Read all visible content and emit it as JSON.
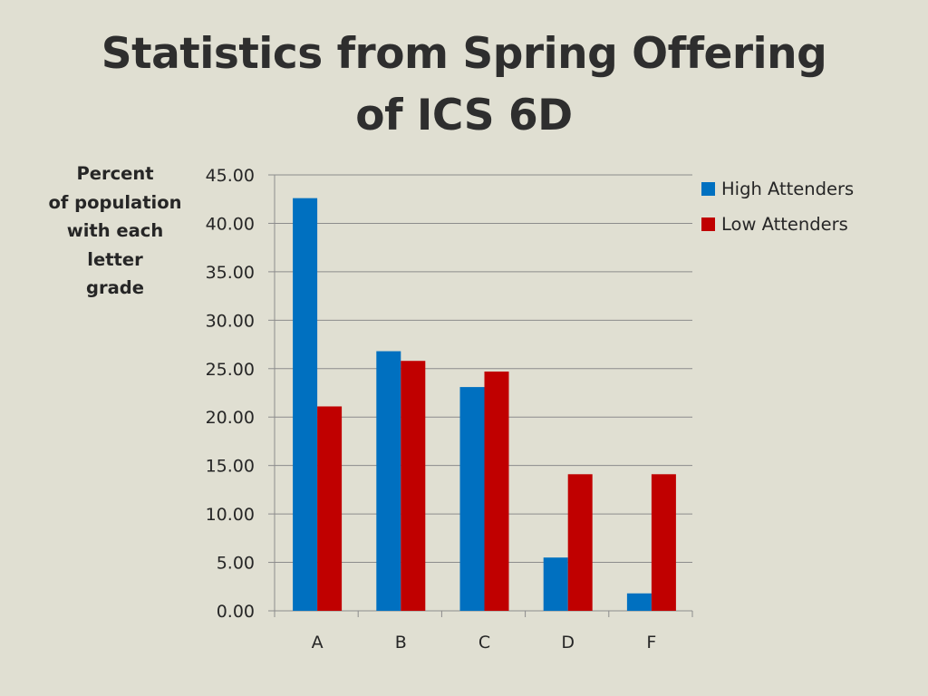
{
  "slide": {
    "title_line1": "Statistics from Spring Offering",
    "title_line2": "of ICS 6D",
    "ylabel_lines": [
      "Percent",
      "of population",
      "with each",
      "letter",
      "grade"
    ]
  },
  "chart_data": {
    "type": "bar",
    "title": "Statistics from Spring Offering of ICS 6D",
    "ylabel": "Percent of population with each letter grade",
    "xlabel": "",
    "categories": [
      "A",
      "B",
      "C",
      "D",
      "F"
    ],
    "ylim": [
      0,
      45
    ],
    "yticks": [
      "0.00",
      "5.00",
      "10.00",
      "15.00",
      "20.00",
      "25.00",
      "30.00",
      "35.00",
      "40.00",
      "45.00"
    ],
    "grid": true,
    "legend_position": "top-right",
    "series": [
      {
        "name": "High Attenders",
        "color": "#0070c0",
        "values": [
          42.6,
          26.8,
          23.1,
          5.5,
          1.8
        ]
      },
      {
        "name": "Low Attenders",
        "color": "#c00000",
        "values": [
          21.1,
          25.8,
          24.7,
          14.1,
          14.1
        ]
      }
    ]
  }
}
